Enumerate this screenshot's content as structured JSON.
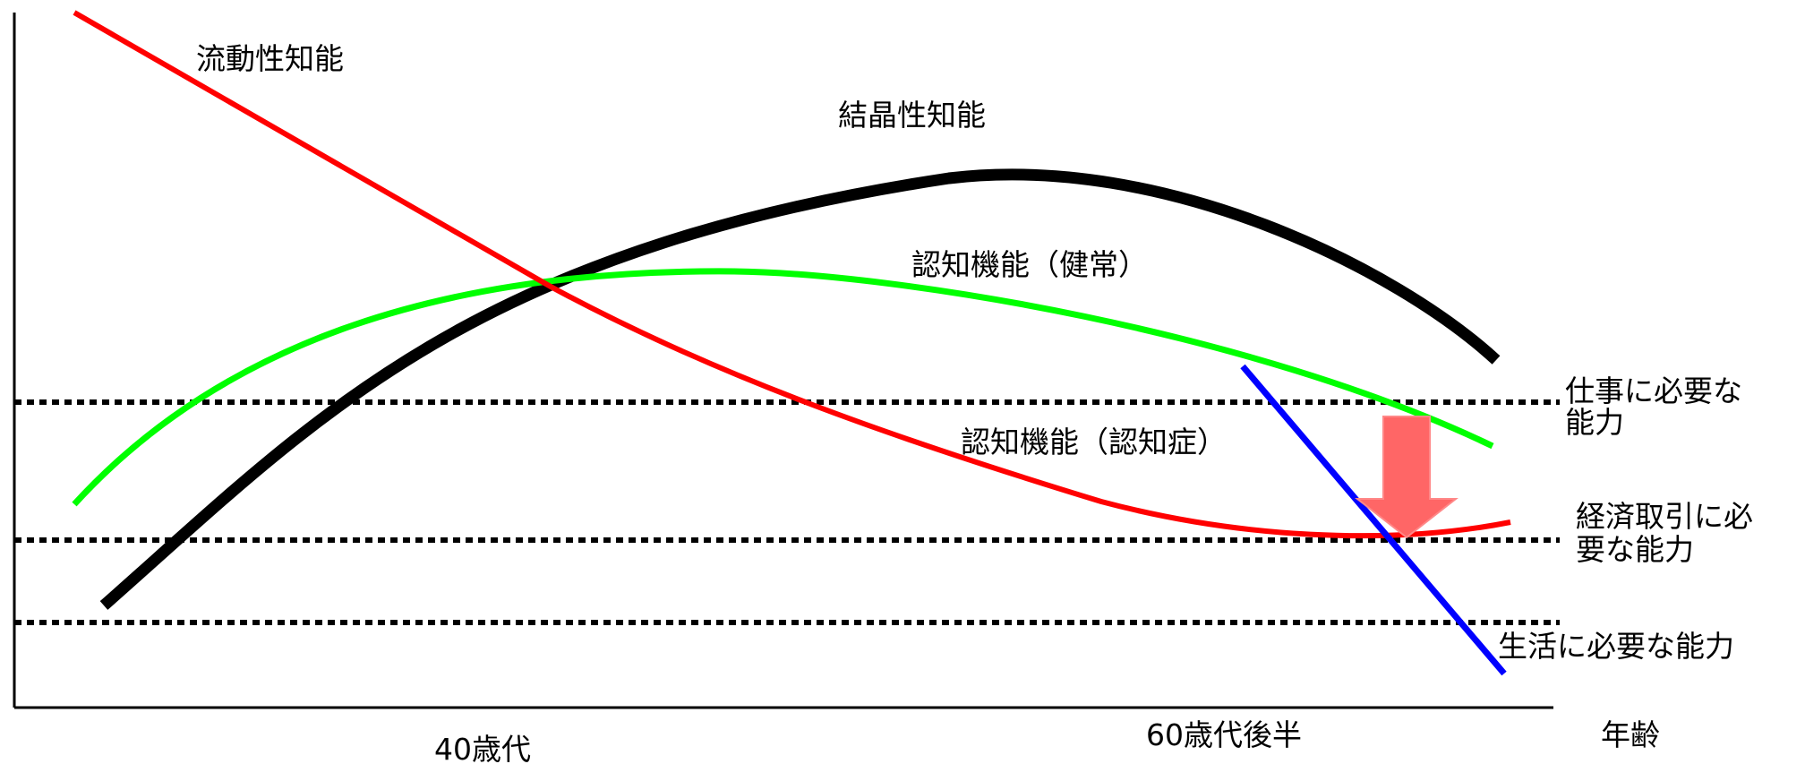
{
  "labels": {
    "fluid_intelligence": "流動性知能",
    "crystallized_intelligence": "結晶性知能",
    "cognitive_healthy": "認知機能（健常）",
    "cognitive_dementia": "認知機能（認知症）",
    "work_ability_line1": "仕事に必要な",
    "work_ability_line2": "能力",
    "financial_ability_line1": "経済取引に必",
    "financial_ability_line2": "要な能力",
    "daily_life_ability": "生活に必要な能力",
    "age_40s": "40歳代",
    "age_late_60s": "60歳代後半",
    "x_axis_label": "年齢"
  },
  "colors": {
    "fluid": "#ff0000",
    "crystallized": "#000000",
    "healthy": "#00ff00",
    "dementia_decline": "#0000ff",
    "arrow": "#ff6666",
    "threshold": "#000000",
    "axis": "#000000"
  }
}
